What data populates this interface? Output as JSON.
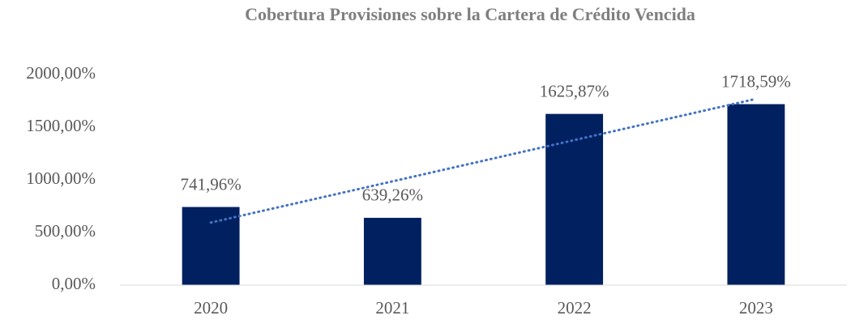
{
  "chart_data": {
    "type": "bar",
    "title": "Cobertura Provisiones sobre la Cartera de Crédito Vencida",
    "categories": [
      "2020",
      "2021",
      "2022",
      "2023"
    ],
    "values": [
      741.96,
      639.26,
      1625.87,
      1718.59
    ],
    "value_labels": [
      "741,96%",
      "639,26%",
      "1625,87%",
      "1718,59%"
    ],
    "color": "#002060",
    "ylim": [
      0,
      2000
    ],
    "yticks": [
      {
        "value": 0,
        "label": "0,00%"
      },
      {
        "value": 500,
        "label": "500,00%"
      },
      {
        "value": 1000,
        "label": "1000,00%"
      },
      {
        "value": 1500,
        "label": "1500,00%"
      },
      {
        "value": 2000,
        "label": "2000,00%"
      }
    ],
    "grid": false,
    "trendline": "linear",
    "trendline_color": "#4472c4"
  }
}
